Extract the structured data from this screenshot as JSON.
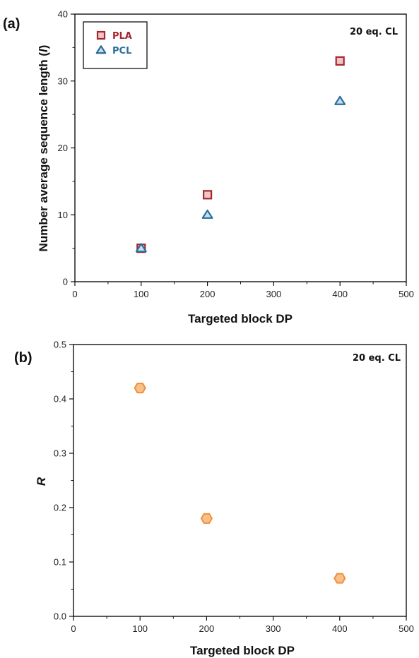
{
  "chart_data": [
    {
      "panel_label": "(a)",
      "type": "scatter",
      "annotation": "20 eq. CL",
      "xlabel": "Targeted block DP",
      "ylabel_text": "Number average sequence length (",
      "ylabel_symbol": "l",
      "ylabel_close": ")",
      "xlim": [
        0,
        500
      ],
      "ylim": [
        0,
        40
      ],
      "xticks": [
        "0",
        "100",
        "200",
        "300",
        "400",
        "500"
      ],
      "yticks": [
        "0",
        "10",
        "20",
        "30",
        "40"
      ],
      "xtick_values": [
        0,
        100,
        200,
        300,
        400,
        500
      ],
      "ytick_values": [
        0,
        10,
        20,
        30,
        40
      ],
      "grid": false,
      "legend_position": "top-left",
      "series": [
        {
          "name": "PLA",
          "marker": "square",
          "edge_color": "#a3272e",
          "fill_color": "#f2c4c6",
          "text_color": "#a3272e",
          "x": [
            100,
            200,
            400
          ],
          "y": [
            5,
            13,
            33
          ]
        },
        {
          "name": "PCL",
          "marker": "triangle",
          "edge_color": "#2b6f9c",
          "fill_color": "#c6ddef",
          "text_color": "#2b6f9c",
          "x": [
            100,
            200,
            400
          ],
          "y": [
            5,
            10,
            27
          ]
        }
      ]
    },
    {
      "panel_label": "(b)",
      "type": "scatter",
      "annotation": "20 eq. CL",
      "xlabel": "Targeted block DP",
      "ylabel": "R",
      "xlim": [
        0,
        500
      ],
      "ylim": [
        0,
        0.5
      ],
      "xticks": [
        "0",
        "100",
        "200",
        "300",
        "400",
        "500"
      ],
      "yticks": [
        "0.0",
        "0.1",
        "0.2",
        "0.3",
        "0.4",
        "0.5"
      ],
      "xtick_values": [
        0,
        100,
        200,
        300,
        400,
        500
      ],
      "ytick_values": [
        0,
        0.1,
        0.2,
        0.3,
        0.4,
        0.5
      ],
      "grid": false,
      "series": [
        {
          "marker": "hexagon",
          "edge_color": "#f0903a",
          "fill_color": "#f8c08a",
          "x": [
            100,
            200,
            400
          ],
          "y": [
            0.42,
            0.18,
            0.07
          ]
        }
      ]
    }
  ]
}
